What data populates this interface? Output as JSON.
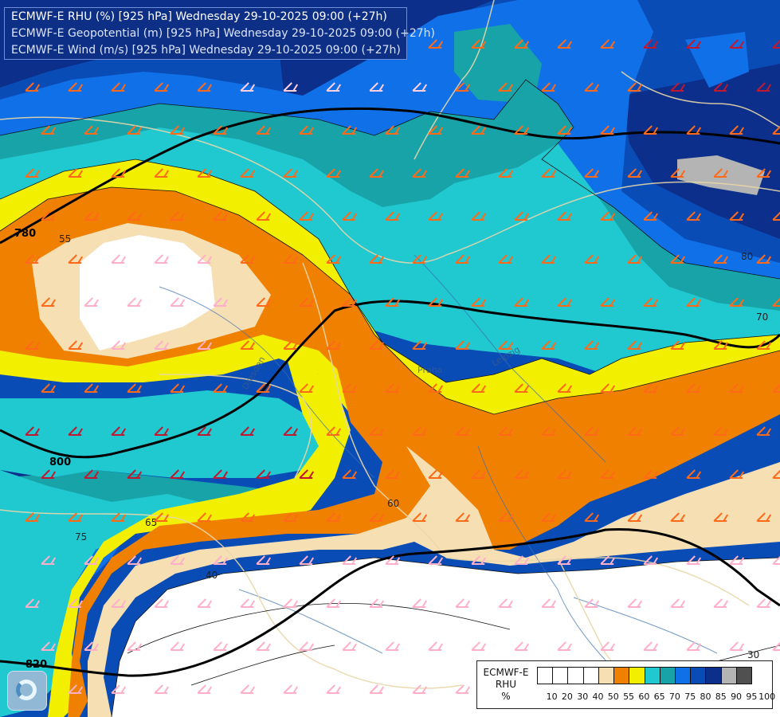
{
  "header": {
    "line1": "ECMWF-E RHU (%) [925 hPa] Wednesday 29-10-2025 09:00 (+27h)",
    "line2": "ECMWF-E Geopotential (m) [925 hPa] Wednesday 29-10-2025 09:00 (+27h)",
    "line3": "ECMWF-E Wind (m/s) [925 hPa] Wednesday 29-10-2025 09:00 (+27h)"
  },
  "contour_labels": [
    {
      "text": "780"
    },
    {
      "text": "800"
    },
    {
      "text": "820"
    },
    {
      "text": "55"
    },
    {
      "text": "60"
    },
    {
      "text": "65"
    },
    {
      "text": "70"
    },
    {
      "text": "75"
    },
    {
      "text": "80"
    },
    {
      "text": "40"
    },
    {
      "text": "30"
    }
  ],
  "places": [
    "Praha",
    "Dresden",
    "Leipzig"
  ],
  "legend": {
    "title_lines": [
      "ECMWF-E",
      "RHU",
      "%"
    ],
    "ticks": [
      "10",
      "20",
      "30",
      "40",
      "50",
      "55",
      "60",
      "65",
      "70",
      "75",
      "80",
      "85",
      "90",
      "95",
      "100"
    ],
    "colors": [
      "#ffffff",
      "#ffffff",
      "#ffffff",
      "#ffffff",
      "#f7dfb4",
      "#f08000",
      "#f2f000",
      "#20c8d0",
      "#18a3a8",
      "#1070e8",
      "#0a4cb5",
      "#0b2f8a",
      "#b4b4b4",
      "#505050"
    ]
  },
  "colors": {
    "white": "#ffffff",
    "tan": "#f7dfb4",
    "orange": "#f08000",
    "yellow": "#f2f000",
    "cyan": "#20c8d0",
    "teal": "#18a3a8",
    "blue": "#1070e8",
    "medblue": "#0a4cb5",
    "navy": "#0b2f8a",
    "gray": "#b4b4b4"
  }
}
